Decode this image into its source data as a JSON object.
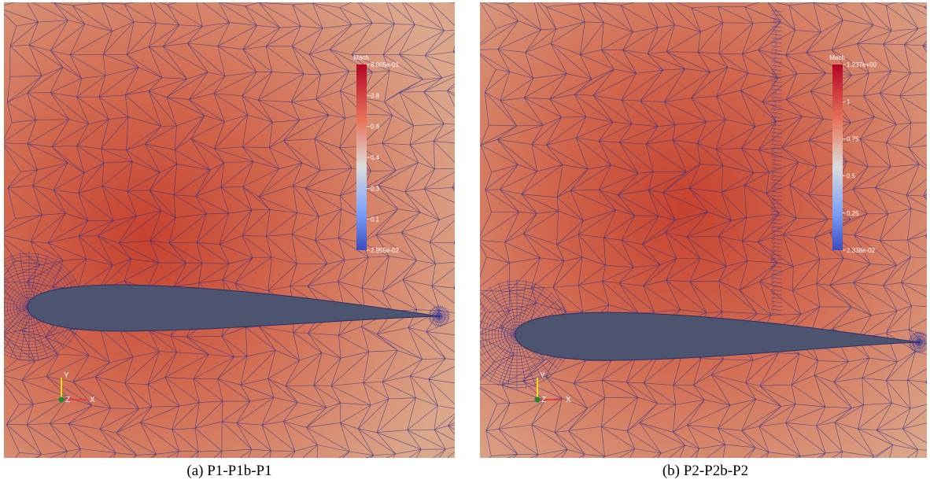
{
  "panels": [
    {
      "caption": "(a) P1-P1b-P1",
      "colorbar": {
        "title": "Mach",
        "labels": [
          "8.005e-01",
          "0.8",
          "0.6",
          "0.4",
          "0.3",
          "0.1",
          "2.955e-02"
        ]
      },
      "axes": {
        "y": "Y",
        "z": "Z",
        "x": "X"
      }
    },
    {
      "caption": "(b) P2-P2b-P2",
      "colorbar": {
        "title": "Mach",
        "labels": [
          "1.237e+00",
          "1",
          "0.75",
          "0.5",
          "0.25",
          "2.338e-02"
        ]
      },
      "axes": {
        "y": "Y",
        "z": "Z",
        "x": "X"
      }
    }
  ]
}
